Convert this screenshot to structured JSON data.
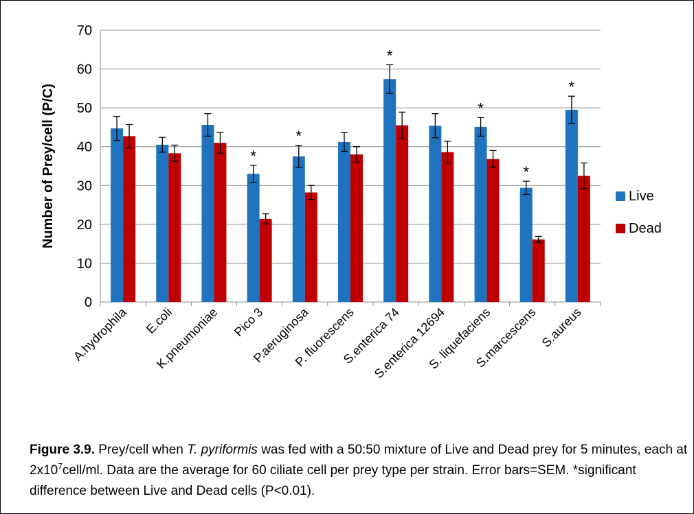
{
  "chart_data": {
    "type": "bar",
    "ylabel": "Number of Prey/cell (P/C)",
    "ylim": [
      0,
      70
    ],
    "yticks": [
      0,
      10,
      20,
      30,
      40,
      50,
      60,
      70
    ],
    "grid": true,
    "legend_position": "right",
    "categories": [
      "A.hydrophila",
      "E.coli",
      "K.pneumoniae",
      "Pico 3",
      "P.aeruginosa",
      "P. fluorescens",
      "S.enterica 74",
      "S.enterica 12694",
      "S. liquefaciens",
      "S.marcescens",
      "S.aureus"
    ],
    "series": [
      {
        "name": "Live",
        "color": "#1f73be",
        "values": [
          44.7,
          40.5,
          45.6,
          33.0,
          37.5,
          41.2,
          57.4,
          45.4,
          45.1,
          29.4,
          49.5
        ],
        "errors": [
          3.1,
          1.9,
          2.9,
          2.2,
          2.8,
          2.4,
          3.7,
          3.1,
          2.4,
          1.7,
          3.5
        ]
      },
      {
        "name": "Dead",
        "color": "#c00000",
        "values": [
          42.7,
          38.3,
          41.0,
          21.4,
          28.2,
          38.0,
          45.5,
          38.6,
          36.8,
          16.1,
          32.5
        ],
        "errors": [
          3.0,
          2.1,
          2.7,
          1.3,
          1.8,
          2.0,
          3.4,
          2.8,
          2.2,
          0.8,
          3.3
        ]
      }
    ],
    "significant": [
      false,
      false,
      false,
      true,
      true,
      false,
      true,
      false,
      true,
      true,
      true
    ],
    "significance_marker": "*"
  },
  "caption": {
    "label": "Figure 3.9.",
    "part1": " Prey/cell when ",
    "species": "T. pyriformis",
    "part2": " was fed with a 50:50 mixture of Live and Dead prey for 5 minutes, each at 2x10",
    "exponent": "7",
    "part3": "cell/ml. Data are the average for 60 ciliate cell per prey type per strain. Error bars=SEM.  *significant difference between Live and Dead cells (P<0.01)."
  }
}
